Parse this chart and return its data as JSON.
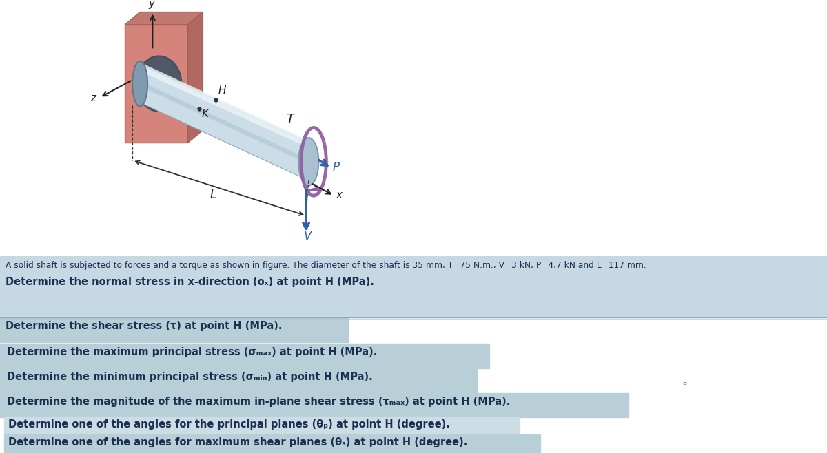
{
  "fig_width": 12.0,
  "fig_height": 6.58,
  "bg_light_blue": "#c5d8e3",
  "bg_white": "#ffffff",
  "box_color": "#b8cfd8",
  "box_color2": "#ccdde6",
  "text_dark": "#1a3050",
  "wall_front": "#d4847a",
  "wall_top": "#c07870",
  "wall_right": "#b06860",
  "shaft_body": "#ccdde8",
  "shaft_light": "#e8f2f8",
  "shaft_mid": "#b0c8d8",
  "shaft_dark": "#8aa8bc",
  "shaft_rim": "#90b0c0",
  "torque_color": "#9060a0",
  "arrow_color": "#3060a8",
  "axis_color": "#202020",
  "description": "A solid shaft is subjected to forces and a torque as shown in figure. The diameter of the shaft is 35 mm, T=75 N.m., V=3 kN, P=4,7 kN and L=117 mm.",
  "q1": "Determine the normal stress in x-direction (oₓ) at point H (MPa).",
  "q2": "Determine the shear stress (τ) at point H (MPa).",
  "q3": "Determine the maximum principal stress (σₘₐₓ) at point H (MPa).",
  "q4": "Determine the minimum principal stress (σₘᵢₙ) at point H (MPa).",
  "q5": "Determine the magnitude of the maximum in-plane shear stress (τₘₐₓ) at point H (MPa).",
  "q6": "Determine one of the angles for the principal planes (θₚ) at point H (degree).",
  "q7": "Determine one of the angles for maximum shear planes (θₛ) at point H (degree)."
}
